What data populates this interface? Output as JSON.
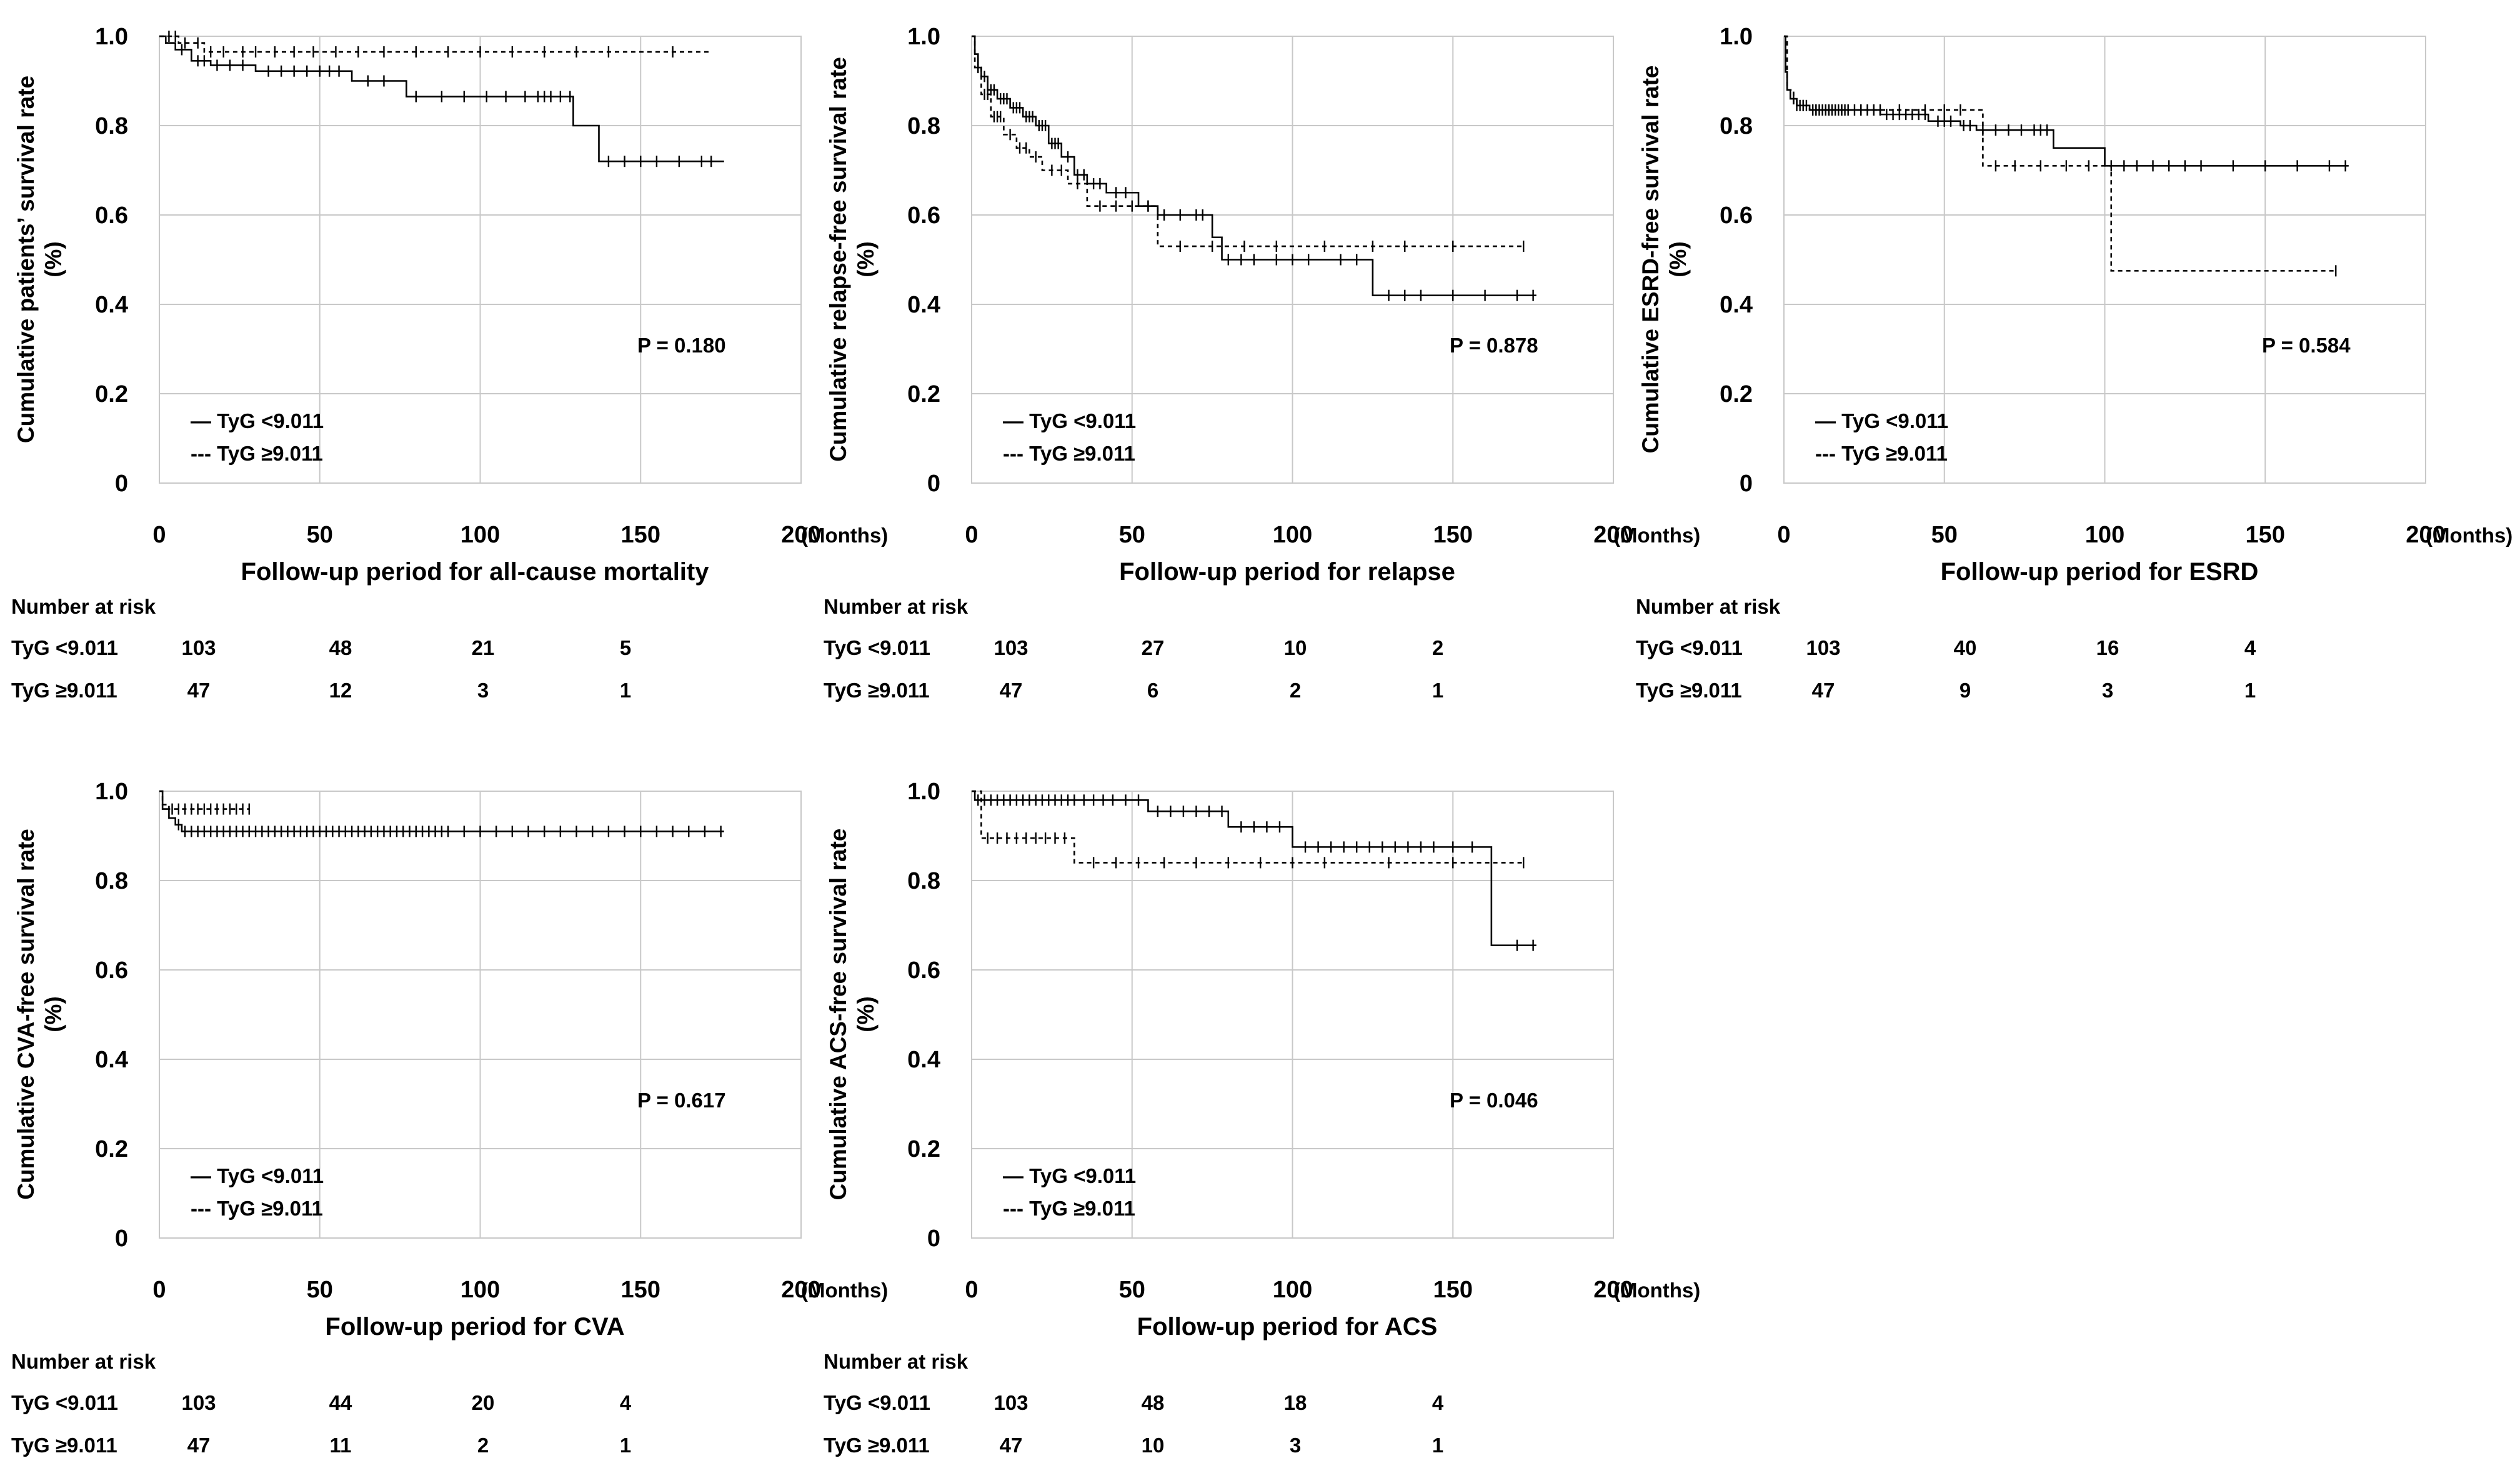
{
  "groups": {
    "low": "TyG <9.011",
    "high": "TyG ≥9.011",
    "legend_low": "— TyG <9.011",
    "legend_high": "--- TyG ≥9.011"
  },
  "x_unit": "(Months)",
  "risk_title": "Number at risk",
  "colors": {
    "line": "#000000",
    "grid": "#c8c8c8"
  },
  "chart_data": [
    {
      "id": "mortality",
      "type": "line",
      "title": "",
      "ylabel_line1": "Cumulative patients’ survival rate",
      "ylabel_line2": "(%)",
      "xlabel": "Follow-up period for all-cause mortality",
      "xlim": [
        0,
        200
      ],
      "ylim": [
        0,
        1.0
      ],
      "xticks": [
        "0",
        "50",
        "100",
        "150",
        "200"
      ],
      "yticks": [
        "0",
        "0.2",
        "0.4",
        "0.6",
        "0.8",
        "1.0"
      ],
      "p_value": "P = 0.180",
      "series": [
        {
          "name": "TyG <9.011",
          "style": "solid",
          "steps": [
            [
              0,
              1.0
            ],
            [
              2,
              0.985
            ],
            [
              5,
              0.97
            ],
            [
              10,
              0.945
            ],
            [
              16,
              0.935
            ],
            [
              30,
              0.922
            ],
            [
              60,
              0.9
            ],
            [
              77,
              0.865
            ],
            [
              129,
              0.8
            ],
            [
              137,
              0.72
            ],
            [
              176,
              0.72
            ]
          ],
          "censor": [
            7,
            12,
            14,
            18,
            22,
            26,
            34,
            38,
            42,
            46,
            50,
            53,
            56,
            65,
            70,
            80,
            88,
            95,
            102,
            108,
            114,
            118,
            120,
            122,
            125,
            128,
            140,
            145,
            150,
            155,
            162,
            169,
            172
          ]
        },
        {
          "name": "TyG ≥9.011",
          "style": "dashed",
          "steps": [
            [
              0,
              1.0
            ],
            [
              6,
              0.985
            ],
            [
              14,
              0.965
            ],
            [
              172,
              0.965
            ]
          ],
          "censor": [
            3,
            5,
            8,
            12,
            16,
            20,
            26,
            30,
            36,
            42,
            48,
            55,
            62,
            70,
            80,
            90,
            100,
            110,
            120,
            130,
            140,
            160
          ]
        }
      ],
      "risk": {
        "times": [
          "0",
          "50",
          "100",
          "150"
        ],
        "low": [
          "103",
          "48",
          "21",
          "5"
        ],
        "high": [
          "47",
          "12",
          "3",
          "1"
        ]
      }
    },
    {
      "id": "relapse",
      "type": "line",
      "title": "",
      "ylabel_line1": "Cumulative relapse-free survival rate",
      "ylabel_line2": "(%)",
      "xlabel": "Follow-up period for relapse",
      "xlim": [
        0,
        200
      ],
      "ylim": [
        0,
        1.0
      ],
      "xticks": [
        "0",
        "50",
        "100",
        "150",
        "200"
      ],
      "yticks": [
        "0",
        "0.2",
        "0.4",
        "0.6",
        "0.8",
        "1.0"
      ],
      "p_value": "P = 0.878",
      "series": [
        {
          "name": "TyG <9.011",
          "style": "solid",
          "steps": [
            [
              0,
              1.0
            ],
            [
              1,
              0.96
            ],
            [
              2,
              0.93
            ],
            [
              3,
              0.91
            ],
            [
              5,
              0.88
            ],
            [
              8,
              0.86
            ],
            [
              12,
              0.84
            ],
            [
              16,
              0.82
            ],
            [
              20,
              0.8
            ],
            [
              24,
              0.76
            ],
            [
              28,
              0.73
            ],
            [
              32,
              0.69
            ],
            [
              36,
              0.67
            ],
            [
              42,
              0.65
            ],
            [
              52,
              0.62
            ],
            [
              58,
              0.6
            ],
            [
              75,
              0.55
            ],
            [
              78,
              0.5
            ],
            [
              125,
              0.42
            ],
            [
              176,
              0.42
            ]
          ],
          "censor": [
            2,
            4,
            6,
            7,
            9,
            10,
            11,
            13,
            14,
            15,
            17,
            18,
            19,
            21,
            22,
            23,
            25,
            26,
            27,
            30,
            33,
            35,
            38,
            40,
            45,
            48,
            55,
            60,
            65,
            70,
            72,
            80,
            84,
            88,
            95,
            100,
            105,
            115,
            120,
            130,
            135,
            140,
            150,
            160,
            170,
            175
          ]
        },
        {
          "name": "TyG ≥9.011",
          "style": "dashed",
          "steps": [
            [
              0,
              1.0
            ],
            [
              1,
              0.93
            ],
            [
              3,
              0.87
            ],
            [
              6,
              0.82
            ],
            [
              10,
              0.78
            ],
            [
              14,
              0.75
            ],
            [
              18,
              0.73
            ],
            [
              22,
              0.7
            ],
            [
              30,
              0.67
            ],
            [
              36,
              0.62
            ],
            [
              58,
              0.53
            ],
            [
              172,
              0.53
            ]
          ],
          "censor": [
            2,
            4,
            5,
            7,
            8,
            9,
            12,
            15,
            17,
            20,
            25,
            28,
            33,
            40,
            45,
            50,
            55,
            65,
            75,
            85,
            95,
            110,
            125,
            135,
            150,
            172
          ]
        }
      ],
      "risk": {
        "times": [
          "0",
          "50",
          "100",
          "150"
        ],
        "low": [
          "103",
          "27",
          "10",
          "2"
        ],
        "high": [
          "47",
          "6",
          "2",
          "1"
        ]
      }
    },
    {
      "id": "esrd",
      "type": "line",
      "title": "",
      "ylabel_line1": "Cumulative ESRD-free survival rate",
      "ylabel_line2": "(%)",
      "xlabel": "Follow-up period for ESRD",
      "xlim": [
        0,
        200
      ],
      "ylim": [
        0,
        1.0
      ],
      "xticks": [
        "0",
        "50",
        "100",
        "150",
        "200"
      ],
      "yticks": [
        "0",
        "0.2",
        "0.4",
        "0.6",
        "0.8",
        "1.0"
      ],
      "p_value": "P = 0.584",
      "series": [
        {
          "name": "TyG <9.011",
          "style": "solid",
          "steps": [
            [
              0,
              1.0
            ],
            [
              0.5,
              0.92
            ],
            [
              1,
              0.88
            ],
            [
              2,
              0.86
            ],
            [
              4,
              0.845
            ],
            [
              8,
              0.835
            ],
            [
              30,
              0.825
            ],
            [
              45,
              0.81
            ],
            [
              55,
              0.8
            ],
            [
              60,
              0.79
            ],
            [
              84,
              0.75
            ],
            [
              100,
              0.71
            ],
            [
              176,
              0.71
            ]
          ],
          "censor": [
            3,
            5,
            6,
            7,
            9,
            10,
            11,
            12,
            13,
            14,
            15,
            16,
            17,
            18,
            19,
            20,
            22,
            24,
            26,
            28,
            32,
            34,
            36,
            38,
            40,
            42,
            44,
            48,
            50,
            52,
            56,
            58,
            62,
            66,
            70,
            74,
            78,
            80,
            82,
            102,
            106,
            110,
            115,
            120,
            125,
            130,
            140,
            150,
            160,
            170,
            175
          ]
        },
        {
          "name": "TyG ≥9.011",
          "style": "dashed",
          "steps": [
            [
              0,
              1.0
            ],
            [
              1,
              0.88
            ],
            [
              3,
              0.845
            ],
            [
              8,
              0.835
            ],
            [
              40,
              0.835
            ],
            [
              62,
              0.71
            ],
            [
              102,
              0.475
            ],
            [
              172,
              0.475
            ]
          ],
          "censor": [
            4,
            6,
            10,
            14,
            18,
            24,
            30,
            36,
            44,
            50,
            55,
            66,
            72,
            80,
            88,
            95,
            172
          ]
        }
      ],
      "risk": {
        "times": [
          "0",
          "50",
          "100",
          "150"
        ],
        "low": [
          "103",
          "40",
          "16",
          "4"
        ],
        "high": [
          "47",
          "9",
          "3",
          "1"
        ]
      }
    },
    {
      "id": "cva",
      "type": "line",
      "title": "",
      "ylabel_line1": "Cumulative CVA-free survival rate",
      "ylabel_line2": "(%)",
      "xlabel": "Follow-up period for CVA",
      "xlim": [
        0,
        200
      ],
      "ylim": [
        0,
        1.0
      ],
      "xticks": [
        "0",
        "50",
        "100",
        "150",
        "200"
      ],
      "yticks": [
        "0",
        "0.2",
        "0.4",
        "0.6",
        "0.8",
        "1.0"
      ],
      "p_value": "P = 0.617",
      "series": [
        {
          "name": "TyG <9.011",
          "style": "solid",
          "steps": [
            [
              0,
              1.0
            ],
            [
              1,
              0.96
            ],
            [
              3,
              0.94
            ],
            [
              5,
              0.925
            ],
            [
              7,
              0.91
            ],
            [
              176,
              0.91
            ]
          ],
          "censor": [
            6,
            8,
            10,
            12,
            14,
            16,
            18,
            20,
            22,
            24,
            26,
            28,
            30,
            32,
            34,
            36,
            38,
            40,
            42,
            44,
            46,
            48,
            50,
            52,
            54,
            56,
            58,
            60,
            62,
            64,
            66,
            68,
            70,
            72,
            74,
            76,
            78,
            80,
            82,
            84,
            86,
            88,
            90,
            95,
            100,
            105,
            110,
            115,
            120,
            125,
            130,
            135,
            140,
            145,
            150,
            155,
            160,
            165,
            170,
            175
          ]
        },
        {
          "name": "TyG ≥9.011",
          "style": "dashed",
          "steps": [
            [
              0,
              1.0
            ],
            [
              1,
              0.97
            ],
            [
              3,
              0.96
            ],
            [
              28,
              0.96
            ]
          ],
          "censor": [
            4,
            6,
            8,
            10,
            12,
            14,
            16,
            18,
            20,
            22,
            24,
            26,
            28
          ]
        }
      ],
      "risk": {
        "times": [
          "0",
          "50",
          "100",
          "150"
        ],
        "low": [
          "103",
          "44",
          "20",
          "4"
        ],
        "high": [
          "47",
          "11",
          "2",
          "1"
        ]
      }
    },
    {
      "id": "acs",
      "type": "line",
      "title": "",
      "ylabel_line1": "Cumulative ACS-free survival rate",
      "ylabel_line2": "(%)",
      "xlabel": "Follow-up period for ACS",
      "xlim": [
        0,
        200
      ],
      "ylim": [
        0,
        1.0
      ],
      "xticks": [
        "0",
        "50",
        "100",
        "150",
        "200"
      ],
      "yticks": [
        "0",
        "0.2",
        "0.4",
        "0.6",
        "0.8",
        "1.0"
      ],
      "p_value": "P = 0.046",
      "series": [
        {
          "name": "TyG <9.011",
          "style": "solid",
          "steps": [
            [
              0,
              1.0
            ],
            [
              1,
              0.98
            ],
            [
              55,
              0.955
            ],
            [
              80,
              0.92
            ],
            [
              100,
              0.875
            ],
            [
              162,
              0.655
            ],
            [
              176,
              0.655
            ]
          ],
          "censor": [
            2,
            4,
            6,
            8,
            10,
            12,
            14,
            16,
            18,
            20,
            22,
            24,
            26,
            28,
            30,
            32,
            35,
            38,
            41,
            44,
            48,
            52,
            58,
            62,
            66,
            70,
            74,
            78,
            84,
            88,
            92,
            96,
            104,
            108,
            112,
            116,
            120,
            124,
            128,
            132,
            136,
            140,
            144,
            150,
            156,
            170,
            175
          ]
        },
        {
          "name": "TyG ≥9.011",
          "style": "dashed",
          "steps": [
            [
              0,
              1.0
            ],
            [
              3,
              0.895
            ],
            [
              32,
              0.84
            ],
            [
              172,
              0.84
            ]
          ],
          "censor": [
            5,
            8,
            11,
            14,
            17,
            20,
            23,
            26,
            29,
            38,
            45,
            52,
            60,
            70,
            80,
            90,
            100,
            110,
            130,
            150,
            172
          ]
        }
      ],
      "risk": {
        "times": [
          "0",
          "50",
          "100",
          "150"
        ],
        "low": [
          "103",
          "48",
          "18",
          "4"
        ],
        "high": [
          "47",
          "10",
          "3",
          "1"
        ]
      }
    }
  ]
}
